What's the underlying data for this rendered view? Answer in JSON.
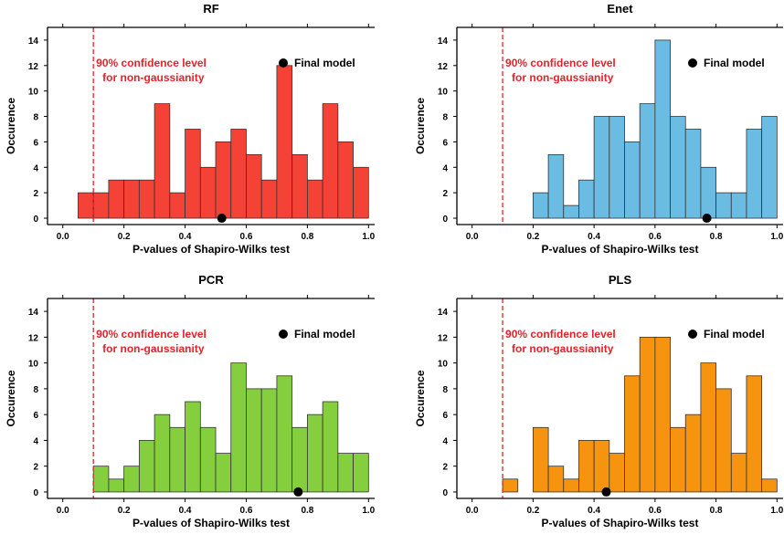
{
  "chart_data": [
    {
      "type": "bar",
      "title": "RF",
      "xlabel": "P-values of Shapiro-Wilks test",
      "ylabel": "Occurence",
      "xlim": [
        -0.05,
        1.02
      ],
      "ylim": [
        -0.5,
        15
      ],
      "xticks": [
        "0.0",
        "0.2",
        "0.4",
        "0.6",
        "0.8",
        "1.0"
      ],
      "yticks": [
        "0",
        "2",
        "4",
        "6",
        "8",
        "10",
        "12",
        "14"
      ],
      "bin_width": 0.05,
      "bins": [
        0.05,
        0.1,
        0.15,
        0.2,
        0.25,
        0.3,
        0.35,
        0.4,
        0.45,
        0.5,
        0.55,
        0.6,
        0.65,
        0.7,
        0.75,
        0.8,
        0.85,
        0.9,
        0.95
      ],
      "values": [
        2,
        2,
        3,
        3,
        3,
        9,
        2,
        7,
        4,
        6,
        7,
        5,
        3,
        12,
        5,
        3,
        9,
        6,
        4
      ],
      "color": "#f44336",
      "threshold_x": 0.1,
      "threshold_label": [
        "90% confidence level",
        "for non-gaussianity"
      ],
      "final_model": {
        "label": "Final model",
        "x": 0.52,
        "y": 0
      }
    },
    {
      "type": "bar",
      "title": "Enet",
      "xlabel": "P-values of Shapiro-Wilks test",
      "ylabel": "Occurence",
      "xlim": [
        -0.05,
        1.02
      ],
      "ylim": [
        -0.5,
        15
      ],
      "xticks": [
        "0.0",
        "0.2",
        "0.4",
        "0.6",
        "0.8",
        "1.0"
      ],
      "yticks": [
        "0",
        "2",
        "4",
        "6",
        "8",
        "10",
        "12",
        "14"
      ],
      "bin_width": 0.05,
      "bins": [
        0.2,
        0.25,
        0.3,
        0.35,
        0.4,
        0.45,
        0.5,
        0.55,
        0.6,
        0.65,
        0.7,
        0.75,
        0.8,
        0.85,
        0.9,
        0.95
      ],
      "values": [
        2,
        5,
        1,
        3,
        8,
        8,
        6,
        9,
        14,
        8,
        7,
        4,
        2,
        2,
        7,
        8
      ],
      "color": "#6bbce3",
      "threshold_x": 0.1,
      "threshold_label": [
        "90% confidence level",
        "for non-gaussianity"
      ],
      "final_model": {
        "label": "Final model",
        "x": 0.77,
        "y": 0
      }
    },
    {
      "type": "bar",
      "title": "PCR",
      "xlabel": "P-values of Shapiro-Wilks test",
      "ylabel": "Occurence",
      "xlim": [
        -0.05,
        1.02
      ],
      "ylim": [
        -0.5,
        15
      ],
      "xticks": [
        "0.0",
        "0.2",
        "0.4",
        "0.6",
        "0.8",
        "1.0"
      ],
      "yticks": [
        "0",
        "2",
        "4",
        "6",
        "8",
        "10",
        "12",
        "14"
      ],
      "bin_width": 0.05,
      "bins": [
        0.1,
        0.15,
        0.2,
        0.25,
        0.3,
        0.35,
        0.4,
        0.45,
        0.5,
        0.55,
        0.6,
        0.65,
        0.7,
        0.75,
        0.8,
        0.85,
        0.9,
        0.95
      ],
      "values": [
        2,
        1,
        2,
        4,
        6,
        5,
        7,
        5,
        3,
        10,
        8,
        8,
        9,
        5,
        6,
        7,
        3,
        3
      ],
      "color": "#85cf3f",
      "threshold_x": 0.1,
      "threshold_label": [
        "90% confidence level",
        "for non-gaussianity"
      ],
      "final_model": {
        "label": "Final model",
        "x": 0.77,
        "y": 0
      }
    },
    {
      "type": "bar",
      "title": "PLS",
      "xlabel": "P-values of Shapiro-Wilks test",
      "ylabel": "Occurence",
      "xlim": [
        -0.05,
        1.02
      ],
      "ylim": [
        -0.5,
        15
      ],
      "xticks": [
        "0.0",
        "0.2",
        "0.4",
        "0.6",
        "0.8",
        "1.0"
      ],
      "yticks": [
        "0",
        "2",
        "4",
        "6",
        "8",
        "10",
        "12",
        "14"
      ],
      "bin_width": 0.05,
      "bins": [
        0.1,
        0.15,
        0.2,
        0.25,
        0.3,
        0.35,
        0.4,
        0.45,
        0.5,
        0.55,
        0.6,
        0.65,
        0.7,
        0.75,
        0.8,
        0.85,
        0.9,
        0.95
      ],
      "values": [
        1,
        0,
        5,
        2,
        1,
        4,
        4,
        3,
        9,
        12,
        12,
        5,
        6,
        10,
        8,
        3,
        9,
        1
      ],
      "color": "#f7940f",
      "threshold_x": 0.1,
      "threshold_label": [
        "90% confidence level",
        "for non-gaussianity"
      ],
      "final_model": {
        "label": "Final model",
        "x": 0.44,
        "y": 0
      }
    }
  ]
}
